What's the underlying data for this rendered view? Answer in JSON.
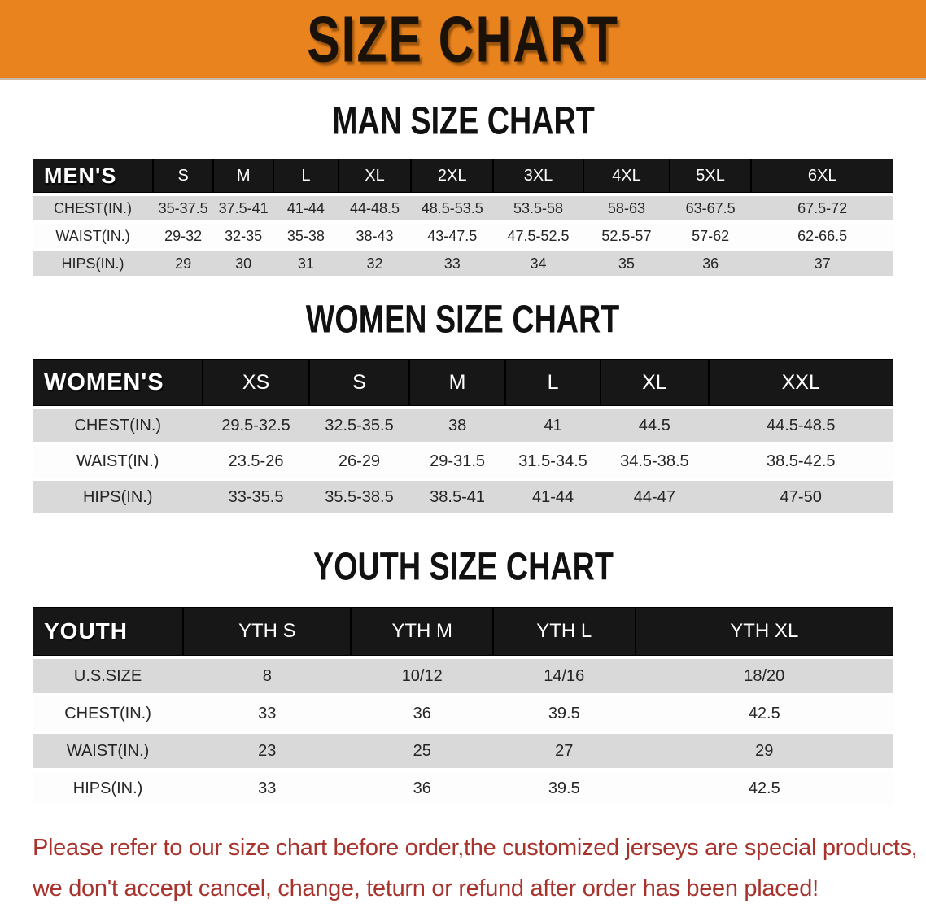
{
  "banner": {
    "title": "SIZE CHART"
  },
  "men": {
    "title": "MAN SIZE CHART",
    "header": [
      "MEN'S",
      "S",
      "M",
      "L",
      "XL",
      "2XL",
      "3XL",
      "4XL",
      "5XL",
      "6XL"
    ],
    "rows": [
      {
        "label": "CHEST(IN.)",
        "values": [
          "35-37.5",
          "37.5-41",
          "41-44",
          "44-48.5",
          "48.5-53.5",
          "53.5-58",
          "58-63",
          "63-67.5",
          "67.5-72"
        ]
      },
      {
        "label": "WAIST(IN.)",
        "values": [
          "29-32",
          "32-35",
          "35-38",
          "38-43",
          "43-47.5",
          "47.5-52.5",
          "52.5-57",
          "57-62",
          "62-66.5"
        ]
      },
      {
        "label": "HIPS(IN.)",
        "values": [
          "29",
          "30",
          "31",
          "32",
          "33",
          "34",
          "35",
          "36",
          "37"
        ]
      }
    ]
  },
  "women": {
    "title": "WOMEN SIZE CHART",
    "header": [
      "WOMEN'S",
      "XS",
      "S",
      "M",
      "L",
      "XL",
      "XXL"
    ],
    "rows": [
      {
        "label": "CHEST(IN.)",
        "values": [
          "29.5-32.5",
          "32.5-35.5",
          "38",
          "41",
          "44.5",
          "44.5-48.5"
        ]
      },
      {
        "label": "WAIST(IN.)",
        "values": [
          "23.5-26",
          "26-29",
          "29-31.5",
          "31.5-34.5",
          "34.5-38.5",
          "38.5-42.5"
        ]
      },
      {
        "label": "HIPS(IN.)",
        "values": [
          "33-35.5",
          "35.5-38.5",
          "38.5-41",
          "41-44",
          "44-47",
          "47-50"
        ]
      }
    ]
  },
  "youth": {
    "title": "YOUTH SIZE CHART",
    "header": [
      "YOUTH",
      "YTH S",
      "YTH M",
      "YTH L",
      "YTH XL"
    ],
    "rows": [
      {
        "label": "U.S.SIZE",
        "values": [
          "8",
          "10/12",
          "14/16",
          "18/20"
        ]
      },
      {
        "label": "CHEST(IN.)",
        "values": [
          "33",
          "36",
          "39.5",
          "42.5"
        ]
      },
      {
        "label": "WAIST(IN.)",
        "values": [
          "23",
          "25",
          "27",
          "29"
        ]
      },
      {
        "label": "HIPS(IN.)",
        "values": [
          "33",
          "36",
          "39.5",
          "42.5"
        ]
      }
    ]
  },
  "disclaimer": {
    "line1": "Please refer to our size chart before order,the customized jerseys are special products,",
    "line2": "we don't accept cancel, change, teturn or refund after order has been placed!"
  },
  "colors": {
    "banner_orange": "#E8831E",
    "header_bar_black": "#171717",
    "row_gray": "#D9D9D9",
    "disclaimer_red": "#A8332D"
  }
}
